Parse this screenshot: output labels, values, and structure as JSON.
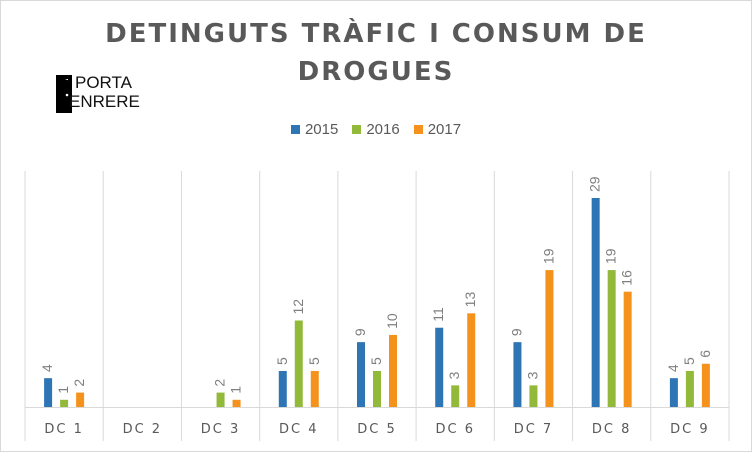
{
  "chart_data": {
    "type": "bar",
    "title": "DETINGUTS  TRÀFIC  I  CONSUM  DE\nDROGUES",
    "categories": [
      "DC 1",
      "DC 2",
      "DC 3",
      "DC 4",
      "DC 5",
      "DC 6",
      "DC 7",
      "DC 8",
      "DC 9"
    ],
    "series": [
      {
        "name": "2015",
        "color": "#2e75b6",
        "values": [
          4,
          null,
          null,
          5,
          9,
          11,
          9,
          29,
          4
        ]
      },
      {
        "name": "2016",
        "color": "#92b93a",
        "values": [
          1,
          null,
          2,
          12,
          5,
          3,
          3,
          19,
          5
        ]
      },
      {
        "name": "2017",
        "color": "#f5921e",
        "values": [
          2,
          null,
          1,
          5,
          10,
          13,
          19,
          16,
          6
        ]
      }
    ],
    "ylim": [
      0,
      30
    ],
    "grid": "vertical category separators",
    "legend": "top-center",
    "data_labels": true
  },
  "logo": {
    "line1": "PORTA",
    "line2": "ENRERE"
  }
}
